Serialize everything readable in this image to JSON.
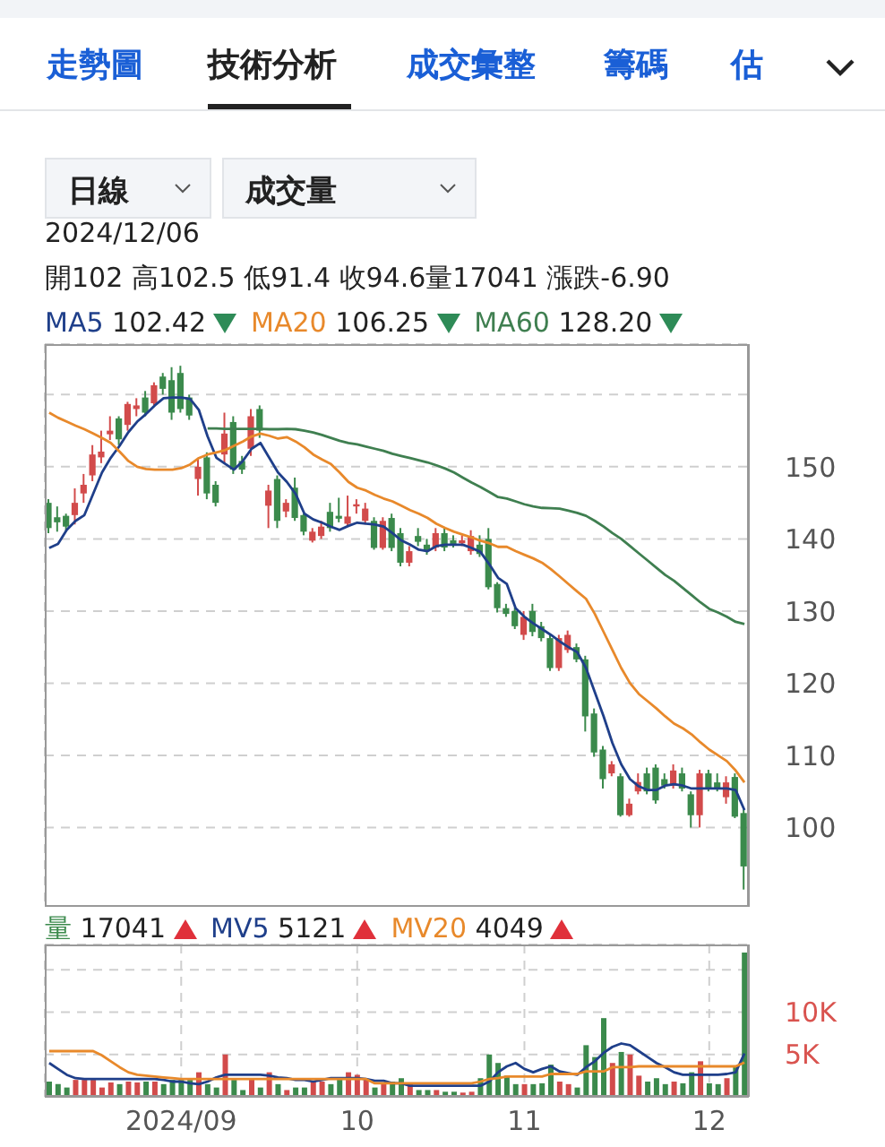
{
  "chart_data": [
    {
      "type": "other",
      "annotations": [
        "走勢圖",
        "技術分析",
        "成交彙整",
        "籌碼",
        "估",
        "日線",
        "成交量"
      ]
    },
    {
      "type": "candlestick",
      "title": "2024/12/06",
      "subtitle": "開102 高102.5 低91.4 收94.6量17041 漲跌-6.90",
      "annotations": [
        "102.42",
        "106.25",
        "128.20"
      ],
      "categories": [
        null,
        null,
        null,
        null,
        null,
        null,
        null,
        null,
        null,
        null,
        null,
        null,
        null,
        null,
        null,
        "2024/09",
        null,
        null,
        null,
        null,
        null,
        null,
        null,
        null,
        null,
        null,
        null,
        null,
        null,
        null,
        null,
        null,
        null,
        null,
        null,
        "10",
        null,
        null,
        null,
        null,
        null,
        null,
        null,
        null,
        null,
        null,
        null,
        null,
        null,
        null,
        null,
        null,
        null,
        null,
        "11",
        null,
        null,
        null,
        null,
        null,
        null,
        null,
        null,
        null,
        null,
        null,
        null,
        null,
        null,
        null,
        null,
        null,
        null,
        null,
        null,
        "12",
        null,
        null,
        null,
        null
      ],
      "ohlc": [
        [
          145,
          145.5,
          140.8,
          141.5
        ],
        [
          143,
          144.5,
          141,
          142.3
        ],
        [
          143.2,
          143.5,
          141,
          141.7
        ],
        [
          143.3,
          147,
          142,
          145
        ],
        [
          146.3,
          149,
          145,
          147.5
        ],
        [
          148.8,
          153,
          148,
          151.7
        ],
        [
          151.3,
          155,
          150.5,
          152.1
        ],
        [
          154.5,
          157,
          153.7,
          155
        ],
        [
          156.7,
          157,
          153,
          153.8
        ],
        [
          155.8,
          159,
          155,
          158.7
        ],
        [
          158,
          159.5,
          157,
          158.5
        ],
        [
          159.6,
          160.5,
          157,
          157.5
        ],
        [
          158.8,
          161.7,
          158.5,
          161.3
        ],
        [
          162.5,
          163,
          160,
          160.8
        ],
        [
          162,
          163.8,
          156.5,
          157.5
        ],
        [
          163,
          164,
          157.5,
          158
        ],
        [
          159.6,
          160,
          156.5,
          157.1
        ],
        [
          148.3,
          151,
          146,
          150
        ],
        [
          151.3,
          152,
          145.5,
          146.3
        ],
        [
          147.5,
          148,
          144.5,
          145
        ],
        [
          151.7,
          157.5,
          150.5,
          154.6
        ],
        [
          156.2,
          157,
          149,
          149.6
        ],
        [
          150.8,
          151.5,
          149,
          149.6
        ],
        [
          152.5,
          158,
          151.5,
          157
        ],
        [
          158,
          158.5,
          154,
          155
        ],
        [
          144.6,
          147.5,
          141.5,
          146.7
        ],
        [
          148.3,
          148.8,
          141.5,
          142.5
        ],
        [
          143.8,
          145.5,
          143,
          145
        ],
        [
          147.1,
          148.5,
          142.5,
          142.9
        ],
        [
          143.3,
          143.5,
          140.5,
          141
        ],
        [
          139.75,
          141.5,
          139.5,
          141
        ],
        [
          140.4,
          142.5,
          140,
          141.7
        ],
        [
          143.75,
          145,
          141,
          141.5
        ],
        [
          143.2,
          145.7,
          142.3,
          142.8
        ],
        [
          142.1,
          146,
          141.8,
          143.1
        ],
        [
          144.5,
          145.5,
          143.5,
          144.8
        ],
        [
          142.5,
          145,
          142,
          144.2
        ],
        [
          142.5,
          143,
          138.5,
          138.75
        ],
        [
          138.75,
          143,
          138.5,
          142.5
        ],
        [
          142.9,
          143.5,
          138.3,
          138.75
        ],
        [
          140.8,
          141.5,
          136.2,
          136.7
        ],
        [
          136.7,
          139,
          136.2,
          138.3
        ],
        [
          140.4,
          141.5,
          139,
          139.6
        ],
        [
          139.2,
          140,
          137.8,
          138.3
        ],
        [
          138.8,
          141.5,
          138.3,
          140.8
        ],
        [
          140.8,
          141.5,
          138.3,
          138.8
        ],
        [
          139.8,
          140.5,
          138.8,
          139.2
        ],
        [
          139.4,
          140.5,
          139,
          139.8
        ],
        [
          138.3,
          141.2,
          137.8,
          140.4
        ],
        [
          139.2,
          140.5,
          137.5,
          137.9
        ],
        [
          140,
          141.5,
          133,
          133.3
        ],
        [
          133.75,
          134,
          129.8,
          130.4
        ],
        [
          130.4,
          131,
          129.2,
          129.6
        ],
        [
          130,
          130.5,
          127.5,
          127.9
        ],
        [
          126.7,
          130,
          126,
          129.2
        ],
        [
          130,
          131,
          126.5,
          127.1
        ],
        [
          127.9,
          128.5,
          125.8,
          126.25
        ],
        [
          126.25,
          126.7,
          121.7,
          122.1
        ],
        [
          122.1,
          126.7,
          121.7,
          126.25
        ],
        [
          124.6,
          127.3,
          124.2,
          126.7
        ],
        [
          125,
          125.5,
          122.9,
          123.3
        ],
        [
          123.3,
          123.8,
          113.3,
          115.4
        ],
        [
          115.8,
          116.5,
          109.8,
          110.4
        ],
        [
          110.8,
          111.3,
          105.4,
          106.7
        ],
        [
          107.5,
          109.2,
          107.1,
          108.75
        ],
        [
          107.1,
          107.5,
          101.5,
          101.7
        ],
        [
          101.7,
          104,
          101.5,
          103.3
        ],
        [
          105,
          107.5,
          104.6,
          106.3
        ],
        [
          107.5,
          108.3,
          104.6,
          105
        ],
        [
          108.3,
          108.75,
          103.3,
          103.75
        ],
        [
          106.7,
          107.5,
          105.4,
          105.8
        ],
        [
          105.8,
          108.75,
          105.4,
          107.9
        ],
        [
          107.5,
          108.3,
          105,
          105.4
        ],
        [
          104.6,
          105,
          100,
          101.7
        ],
        [
          101.7,
          108,
          100,
          107.5
        ],
        [
          107.5,
          108,
          105,
          105.4
        ],
        [
          106.25,
          107.5,
          105,
          105.4
        ],
        [
          104.2,
          107.1,
          103.3,
          106.25
        ],
        [
          107,
          107.5,
          101.3,
          101.5
        ],
        [
          102,
          102.5,
          91.4,
          94.6
        ]
      ],
      "colors": [
        "#3b8a4c",
        "#3b8a4c",
        "#3b8a4c",
        "#d24b4b",
        "#d24b4b",
        "#d24b4b",
        "#d24b4b",
        "#d24b4b",
        "#3b8a4c",
        "#d24b4b",
        "#d24b4b",
        "#3b8a4c",
        "#d24b4b",
        "#3b8a4c",
        "#3b8a4c",
        "#3b8a4c",
        "#3b8a4c",
        "#d24b4b",
        "#3b8a4c",
        "#3b8a4c",
        "#d24b4b",
        "#3b8a4c",
        "#3b8a4c",
        "#d24b4b",
        "#3b8a4c",
        "#d24b4b",
        "#3b8a4c",
        "#d24b4b",
        "#3b8a4c",
        "#3b8a4c",
        "#d24b4b",
        "#d24b4b",
        "#3b8a4c",
        "#3b8a4c",
        "#d24b4b",
        "#d24b4b",
        "#d24b4b",
        "#3b8a4c",
        "#d24b4b",
        "#3b8a4c",
        "#3b8a4c",
        "#d24b4b",
        "#3b8a4c",
        "#3b8a4c",
        "#d24b4b",
        "#3b8a4c",
        "#3b8a4c",
        "#d24b4b",
        "#d24b4b",
        "#3b8a4c",
        "#3b8a4c",
        "#3b8a4c",
        "#3b8a4c",
        "#3b8a4c",
        "#d24b4b",
        "#3b8a4c",
        "#3b8a4c",
        "#3b8a4c",
        "#d24b4b",
        "#d24b4b",
        "#3b8a4c",
        "#3b8a4c",
        "#3b8a4c",
        "#3b8a4c",
        "#d24b4b",
        "#3b8a4c",
        "#d24b4b",
        "#d24b4b",
        "#3b8a4c",
        "#3b8a4c",
        "#3b8a4c",
        "#d24b4b",
        "#3b8a4c",
        "#3b8a4c",
        "#d24b4b",
        "#3b8a4c",
        "#3b8a4c",
        "#d24b4b",
        "#3b8a4c",
        "#3b8a4c"
      ],
      "series": [
        {
          "name": "MA5",
          "type": "line",
          "color": "#1f3f8a",
          "values": [
            138.75,
            139.3,
            141.25,
            142.5,
            143.3,
            146.25,
            149.2,
            151.25,
            152.9,
            154.8,
            156.25,
            157.3,
            158.5,
            159.5,
            159.6,
            159.6,
            159.4,
            157.9,
            154.2,
            151.25,
            150.4,
            149.6,
            150.8,
            152.5,
            153.3,
            151.25,
            149.2,
            147.9,
            146.25,
            143.5,
            142.7,
            142.25,
            141.7,
            141.25,
            141.8,
            142.25,
            142.1,
            142,
            141.7,
            140.8,
            139.8,
            139.2,
            138.5,
            138.3,
            139,
            139.2,
            139.2,
            139.2,
            138.75,
            138.2,
            136.5,
            134.6,
            133.75,
            130.4,
            129.2,
            128.3,
            127.5,
            126.7,
            125.8,
            125,
            124.3,
            122.1,
            118.75,
            115.4,
            111.7,
            108.75,
            106.7,
            105.7,
            105.2,
            105.2,
            105.8,
            106,
            105.8,
            105.4,
            105.4,
            105.4,
            105.4,
            105.4,
            105.2,
            102.42
          ]
        },
        {
          "name": "MA20",
          "type": "line",
          "color": "#e8892b",
          "values": [
            157.5,
            156.8,
            156.25,
            155.7,
            155.2,
            154.6,
            154,
            153.3,
            152.1,
            150.8,
            150,
            149.7,
            149.6,
            149.6,
            149.6,
            149.8,
            150.3,
            151.2,
            151.7,
            152,
            152.3,
            152.9,
            153.5,
            154.2,
            154.6,
            154.3,
            153.9,
            154.1,
            153.5,
            152.7,
            151.7,
            151,
            150.4,
            149.2,
            147.9,
            147.1,
            146.7,
            146.1,
            145.6,
            145.2,
            144.6,
            144,
            143.5,
            142.9,
            142.1,
            141.5,
            141,
            140.6,
            140.2,
            139.75,
            139.4,
            138.9,
            138.9,
            138.3,
            137.8,
            137.3,
            136.7,
            135.8,
            134.8,
            133.75,
            132.7,
            131.7,
            129.6,
            127.1,
            124.6,
            122.1,
            120,
            118.5,
            117.5,
            116.5,
            115.4,
            114.4,
            113.75,
            112.9,
            111.8,
            110.8,
            110,
            109.2,
            107.9,
            106.25
          ]
        },
        {
          "name": "MA60",
          "type": "line",
          "color": "#3f7f50",
          "values": [
            null,
            null,
            null,
            null,
            null,
            null,
            null,
            null,
            null,
            null,
            null,
            null,
            null,
            null,
            null,
            null,
            null,
            null,
            155.3,
            155.3,
            155.25,
            155.25,
            155.25,
            155.25,
            155.25,
            155.2,
            155.2,
            155.25,
            155.2,
            155,
            154.75,
            154.4,
            154,
            153.6,
            153.3,
            153.1,
            152.8,
            152.5,
            152.2,
            151.8,
            151.5,
            151.2,
            150.9,
            150.6,
            150.2,
            149.75,
            149.2,
            148.5,
            147.8,
            147.2,
            146.5,
            145.8,
            145.6,
            145.2,
            144.8,
            144.5,
            144.3,
            144.25,
            144.2,
            143.9,
            143.6,
            143.2,
            142.5,
            141.7,
            140.8,
            140,
            139,
            138,
            137,
            136,
            135,
            134.2,
            133.2,
            132.2,
            131.2,
            130.3,
            129.8,
            129.2,
            128.5,
            128.2
          ]
        }
      ],
      "ylim": [
        89,
        167
      ],
      "yticks": [
        100,
        110,
        120,
        130,
        140,
        150,
        {
          "value": 160,
          "label": null
        }
      ],
      "grid": true,
      "legend": "top left",
      "tick_labels": "y"
    },
    {
      "type": "bar",
      "annotations": [
        "17041",
        "5121",
        "4049"
      ],
      "categories": [
        null,
        null,
        null,
        null,
        null,
        null,
        null,
        null,
        null,
        null,
        null,
        null,
        null,
        null,
        null,
        "2024/09",
        null,
        null,
        null,
        null,
        null,
        null,
        null,
        null,
        null,
        null,
        null,
        null,
        null,
        null,
        null,
        null,
        null,
        null,
        null,
        "10",
        null,
        null,
        null,
        null,
        null,
        null,
        null,
        null,
        null,
        null,
        null,
        null,
        null,
        null,
        null,
        null,
        null,
        null,
        "11",
        null,
        null,
        null,
        null,
        null,
        null,
        null,
        null,
        null,
        null,
        null,
        null,
        null,
        null,
        null,
        null,
        null,
        null,
        null,
        null,
        "12",
        null,
        null,
        null,
        null
      ],
      "series": [
        {
          "name": "量",
          "type": "bar",
          "colors": [
            "#3b8a4c",
            "#3b8a4c",
            "#3b8a4c",
            "#d24b4b",
            "#d24b4b",
            "#d24b4b",
            "#d24b4b",
            "#d24b4b",
            "#3b8a4c",
            "#d24b4b",
            "#d24b4b",
            "#3b8a4c",
            "#d24b4b",
            "#3b8a4c",
            "#3b8a4c",
            "#3b8a4c",
            "#3b8a4c",
            "#d24b4b",
            "#3b8a4c",
            "#3b8a4c",
            "#d24b4b",
            "#3b8a4c",
            "#3b8a4c",
            "#d24b4b",
            "#3b8a4c",
            "#d24b4b",
            "#3b8a4c",
            "#d24b4b",
            "#3b8a4c",
            "#3b8a4c",
            "#d24b4b",
            "#d24b4b",
            "#3b8a4c",
            "#3b8a4c",
            "#d24b4b",
            "#d24b4b",
            "#d24b4b",
            "#3b8a4c",
            "#d24b4b",
            "#3b8a4c",
            "#3b8a4c",
            "#d24b4b",
            "#3b8a4c",
            "#3b8a4c",
            "#d24b4b",
            "#3b8a4c",
            "#3b8a4c",
            "#d24b4b",
            "#d24b4b",
            "#3b8a4c",
            "#3b8a4c",
            "#3b8a4c",
            "#3b8a4c",
            "#3b8a4c",
            "#d24b4b",
            "#3b8a4c",
            "#3b8a4c",
            "#3b8a4c",
            "#d24b4b",
            "#d24b4b",
            "#3b8a4c",
            "#3b8a4c",
            "#3b8a4c",
            "#3b8a4c",
            "#d24b4b",
            "#3b8a4c",
            "#d24b4b",
            "#d24b4b",
            "#3b8a4c",
            "#3b8a4c",
            "#3b8a4c",
            "#d24b4b",
            "#3b8a4c",
            "#3b8a4c",
            "#d24b4b",
            "#3b8a4c",
            "#3b8a4c",
            "#d24b4b",
            "#3b8a4c",
            "#3b8a4c"
          ],
          "values": [
            1800,
            1500,
            1100,
            2000,
            2000,
            2000,
            1100,
            1700,
            1500,
            1800,
            1700,
            1800,
            1800,
            1500,
            2000,
            2000,
            2000,
            2900,
            1500,
            1100,
            5000,
            2000,
            800,
            2200,
            1100,
            2900,
            1500,
            800,
            1100,
            1100,
            1800,
            1800,
            1500,
            2300,
            2900,
            2600,
            2000,
            1100,
            1500,
            1800,
            2200,
            1500,
            800,
            800,
            800,
            600,
            600,
            500,
            600,
            2200,
            5000,
            4000,
            2500,
            1500,
            1500,
            1500,
            1600,
            3800,
            1800,
            1500,
            1100,
            6100,
            4700,
            9300,
            4000,
            5300,
            5000,
            2500,
            1800,
            2200,
            1500,
            1800,
            1600,
            2900,
            4200,
            1600,
            1500,
            2200,
            3600,
            17041
          ]
        },
        {
          "name": "MV5",
          "type": "line",
          "color": "#1f3f8a",
          "values": [
            4000,
            3300,
            2600,
            2200,
            2100,
            2100,
            2100,
            2100,
            2100,
            2100,
            2100,
            2100,
            2100,
            2000,
            1800,
            1800,
            1600,
            1500,
            1800,
            2300,
            2600,
            2600,
            2600,
            2600,
            2600,
            2500,
            2300,
            2200,
            2000,
            2000,
            1800,
            2000,
            2200,
            2200,
            2200,
            2200,
            2100,
            1900,
            1900,
            1600,
            1600,
            1300,
            1300,
            1300,
            1300,
            1300,
            1300,
            1300,
            1300,
            1300,
            1800,
            2900,
            3600,
            4000,
            3300,
            2900,
            3300,
            3600,
            3000,
            2800,
            2600,
            3500,
            4200,
            5200,
            5900,
            6300,
            6100,
            5400,
            4700,
            4000,
            3500,
            2900,
            2600,
            2600,
            2600,
            2600,
            2600,
            2700,
            2900,
            5121
          ]
        },
        {
          "name": "MV20",
          "type": "line",
          "color": "#e8892b",
          "values": [
            5400,
            5400,
            5400,
            5400,
            5400,
            5400,
            4900,
            4200,
            3500,
            2900,
            2600,
            2500,
            2400,
            2300,
            2200,
            2100,
            2100,
            2100,
            2100,
            2100,
            2100,
            2100,
            2100,
            2100,
            2100,
            2100,
            2100,
            2100,
            2100,
            2100,
            2100,
            2100,
            2100,
            2100,
            2100,
            2100,
            2100,
            1600,
            1600,
            1600,
            1600,
            1600,
            1600,
            1600,
            1600,
            1600,
            1600,
            1600,
            1600,
            1800,
            2100,
            2200,
            2400,
            2400,
            2400,
            2400,
            2400,
            2700,
            2700,
            2700,
            2700,
            3000,
            3000,
            3000,
            3500,
            3500,
            3500,
            3600,
            3600,
            3600,
            3600,
            3600,
            3600,
            3600,
            3600,
            3600,
            3600,
            3600,
            3600,
            4049
          ]
        }
      ],
      "ylim": [
        0,
        18000
      ],
      "yticks": [
        {
          "value": 5000,
          "label": "5K"
        },
        {
          "value": 10000,
          "label": "10K"
        },
        {
          "value": 15000,
          "label": null
        }
      ],
      "grid": true,
      "legend": "top left"
    }
  ]
}
